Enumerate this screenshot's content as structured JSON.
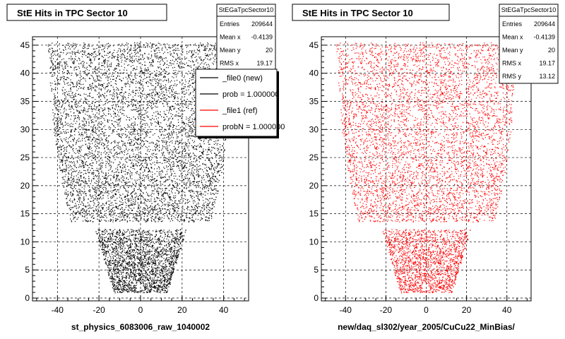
{
  "colors": {
    "new": "#000000",
    "ref": "#ff0000",
    "frame": "#000000",
    "grid": "#000000",
    "background": "#ffffff"
  },
  "chart_data": [
    {
      "type": "scatter",
      "title": "StE Hits in TPC Sector 10",
      "xlabel": "st_physics_6083006_raw_1040002",
      "ylabel": "",
      "xlim": [
        -52,
        52
      ],
      "ylim": [
        -0.5,
        46.5
      ],
      "xticks": [
        "-40",
        "-20",
        "0",
        "20",
        "40"
      ],
      "yticks": [
        "0",
        "5",
        "10",
        "15",
        "20",
        "25",
        "30",
        "35",
        "40",
        "45"
      ],
      "grid": true,
      "marker_color": "#000000",
      "stats": {
        "name": "StEGaTpcSector10",
        "rows": [
          {
            "label": "Entries",
            "value": "209644"
          },
          {
            "label": "Mean x",
            "value": "-0.4139"
          },
          {
            "label": "Mean y",
            "value": "20"
          },
          {
            "label": "RMS x",
            "value": "19.17"
          }
        ]
      },
      "legend": {
        "placement": "top-right",
        "entries": [
          {
            "label": "_file0 (new)",
            "color": "#000000"
          },
          {
            "label": "prob = 1.000000",
            "color": "#000000"
          },
          {
            "label": "_file1 (ref)",
            "color": "#ff0000"
          },
          {
            "label": "probN = 1.000000",
            "color": "#ff0000"
          }
        ]
      }
    },
    {
      "type": "scatter",
      "title": "StE Hits in TPC Sector 10",
      "xlabel": "new/daq_sl302/year_2005/CuCu22_MinBias/",
      "ylabel": "",
      "xlim": [
        -52,
        52
      ],
      "ylim": [
        -0.5,
        46.5
      ],
      "xticks": [
        "-40",
        "-20",
        "0",
        "20",
        "40"
      ],
      "yticks": [
        "0",
        "5",
        "10",
        "15",
        "20",
        "25",
        "30",
        "35",
        "40",
        "45"
      ],
      "grid": true,
      "marker_color": "#ff0000",
      "stats": {
        "name": "StEGaTpcSector10",
        "rows": [
          {
            "label": "Entries",
            "value": "209644"
          },
          {
            "label": "Mean x",
            "value": "-0.4139"
          },
          {
            "label": "Mean y",
            "value": "20"
          },
          {
            "label": "RMS x",
            "value": "19.17"
          },
          {
            "label": "RMS y",
            "value": "13.12"
          }
        ]
      }
    }
  ]
}
